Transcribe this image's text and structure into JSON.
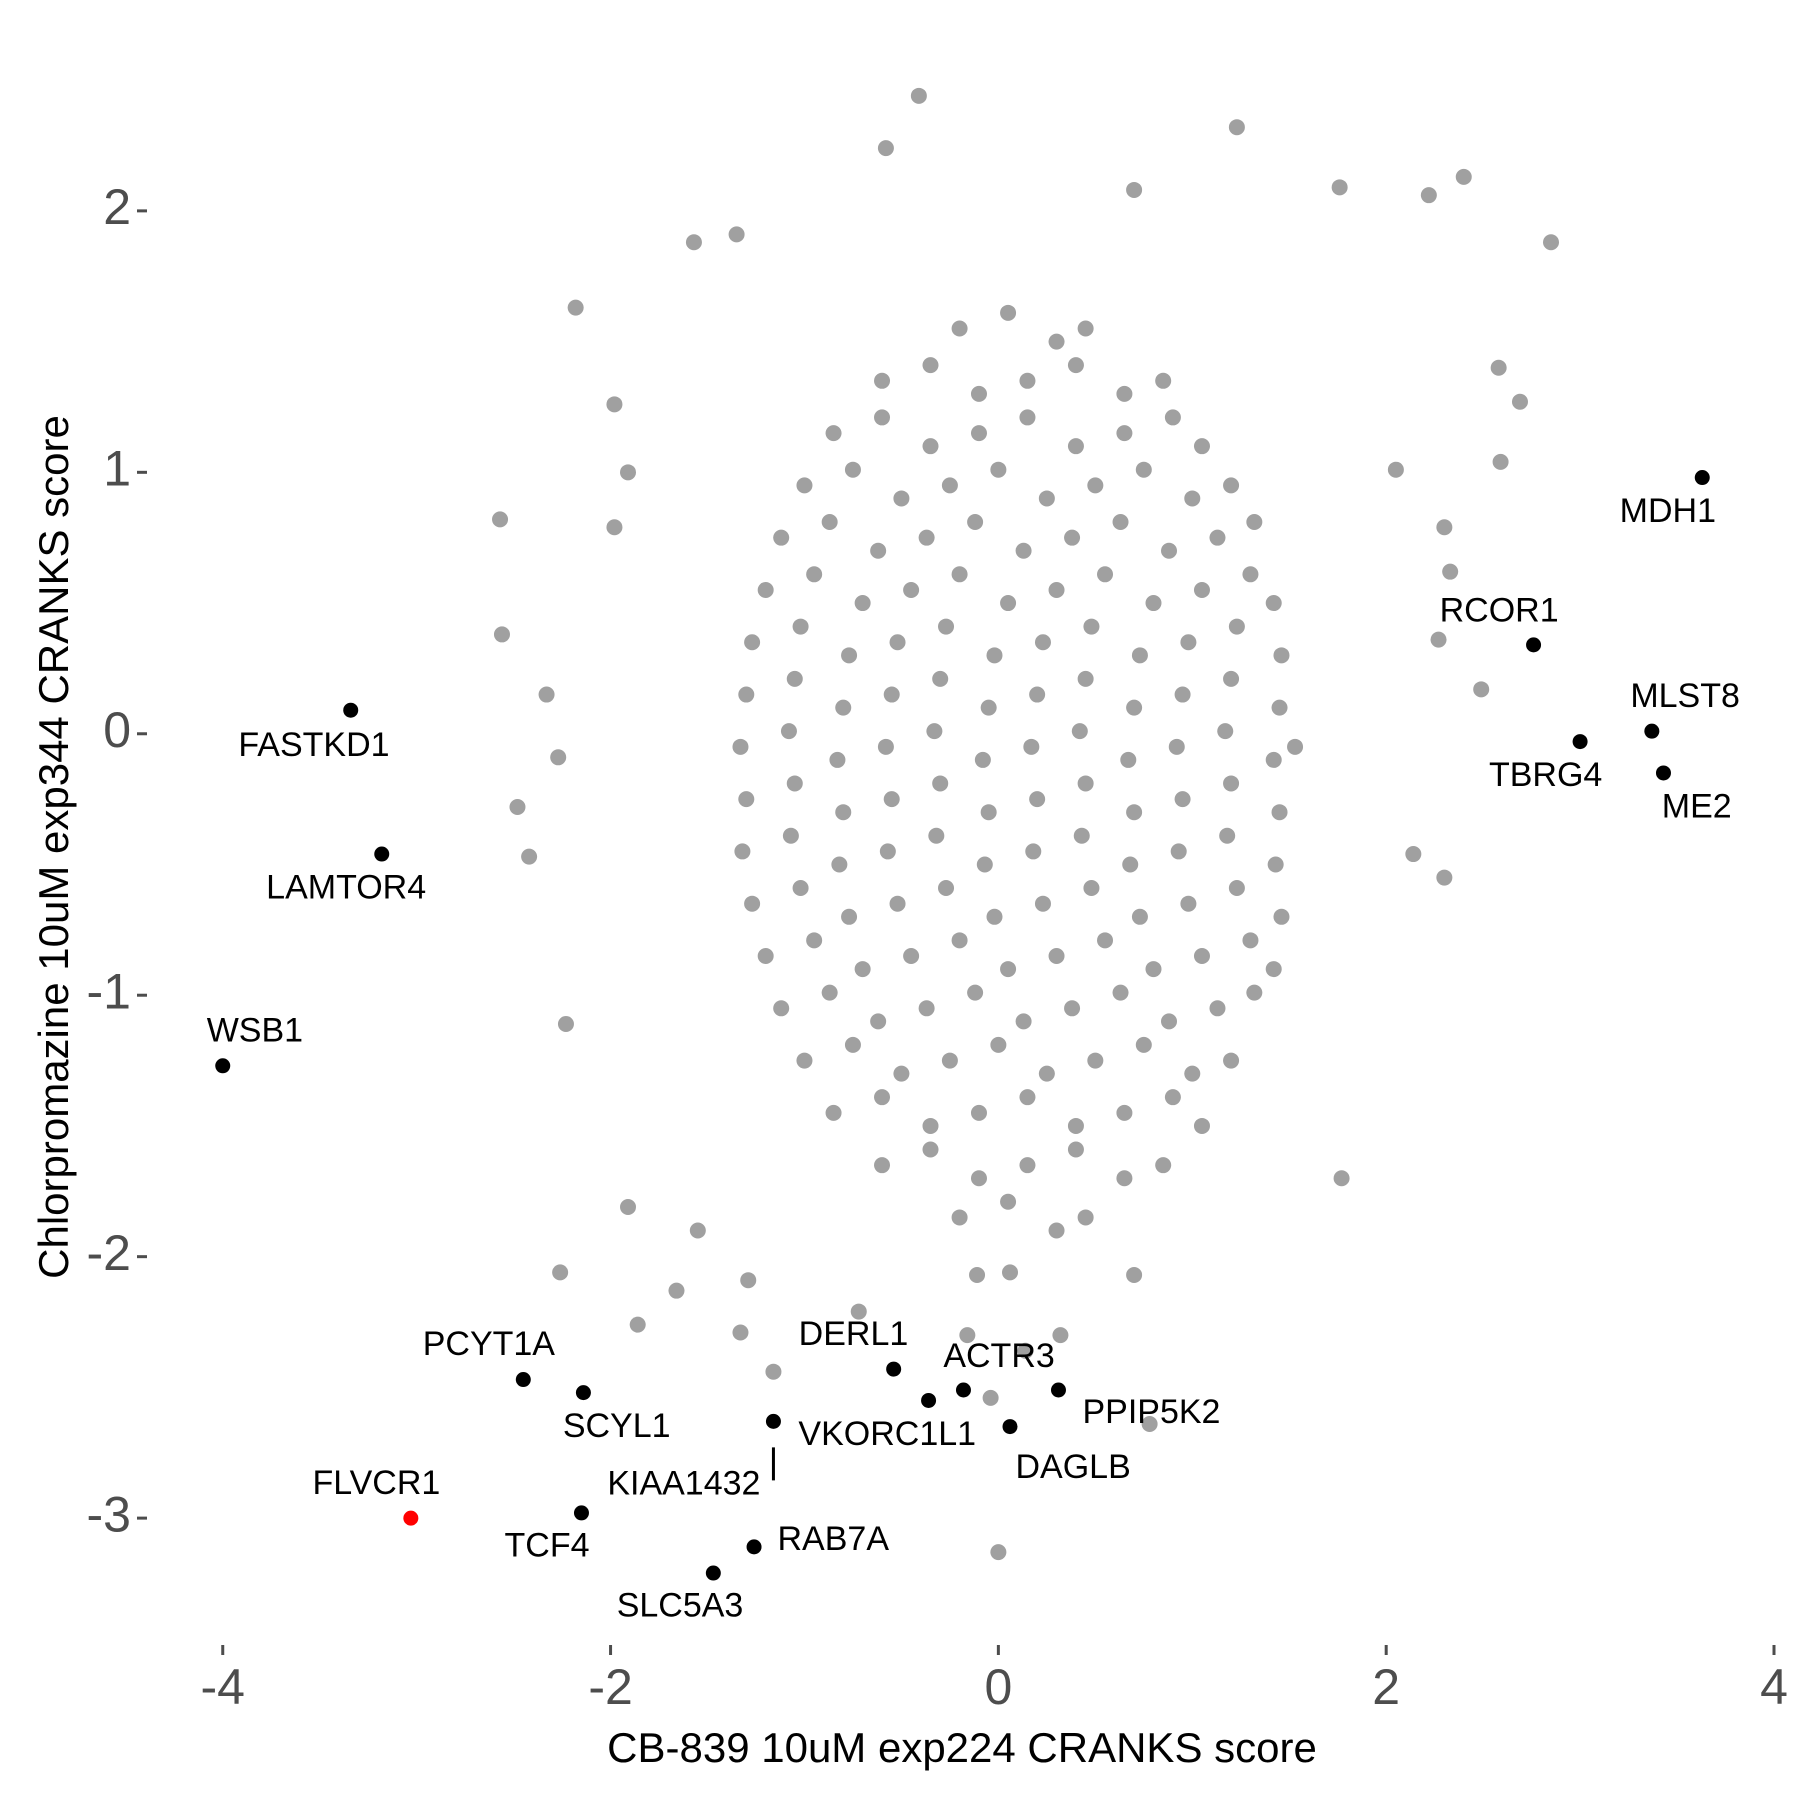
{
  "chart_data": {
    "type": "scatter",
    "x_label": "CB-839 10uM exp224 CRANKS score",
    "y_label": "Chlorpromazine 10uM exp344 CRANKS score",
    "xlim": [
      -4.37,
      4.0
    ],
    "ylim": [
      -3.47,
      2.6
    ],
    "xticks": [
      -4,
      -2,
      0,
      2,
      4
    ],
    "yticks": [
      -3,
      -2,
      -1,
      0,
      1,
      2
    ],
    "grid": false,
    "points": {
      "color": "#a0a0a0",
      "x": [
        -0.41,
        1.23,
        -0.58,
        2.4,
        2.22,
        1.76,
        0.7,
        2.85,
        -1.57,
        -1.35,
        -2.18,
        2.58,
        2.69,
        2.59,
        2.05,
        2.3,
        2.33,
        2.27,
        2.49,
        2.14,
        2.3,
        1.77,
        0.7,
        -2.57,
        -2.56,
        -1.98,
        -1.91,
        -1.98,
        -2.33,
        -2.27,
        -2.48,
        -2.42,
        -2.23,
        -2.26,
        -1.86,
        -1.66,
        -1.91,
        -1.55,
        -1.29,
        -1.33,
        -1.16,
        -0.72,
        0.0,
        0.78,
        0.32,
        0.06,
        -0.11,
        -0.04,
        -0.16,
        0.14,
        -0.2,
        0.05,
        0.3,
        0.45,
        -0.6,
        -0.35,
        -0.1,
        0.15,
        0.4,
        0.65,
        0.85,
        -0.85,
        -0.6,
        -0.35,
        -0.1,
        0.15,
        0.4,
        0.65,
        0.9,
        1.05,
        -1.0,
        -0.75,
        -0.5,
        -0.25,
        0,
        0.25,
        0.5,
        0.75,
        1.0,
        1.2,
        -1.12,
        -0.87,
        -0.62,
        -0.37,
        -0.12,
        0.13,
        0.38,
        0.63,
        0.88,
        1.13,
        1.32,
        -1.2,
        -0.95,
        -0.7,
        -0.45,
        -0.2,
        0.05,
        0.3,
        0.55,
        0.8,
        1.05,
        1.3,
        1.42,
        -1.27,
        -1.02,
        -0.77,
        -0.52,
        -0.27,
        -0.02,
        0.23,
        0.48,
        0.73,
        0.98,
        1.23,
        1.46,
        -1.3,
        -1.05,
        -0.8,
        -0.55,
        -0.3,
        -0.05,
        0.2,
        0.45,
        0.7,
        0.95,
        1.2,
        1.45,
        -1.33,
        -1.08,
        -0.83,
        -0.58,
        -0.33,
        -0.08,
        0.17,
        0.42,
        0.67,
        0.92,
        1.17,
        1.42,
        1.53,
        -1.3,
        -1.05,
        -0.8,
        -0.55,
        -0.3,
        -0.05,
        0.2,
        0.45,
        0.7,
        0.95,
        1.2,
        1.45,
        -1.32,
        -1.07,
        -0.82,
        -0.57,
        -0.32,
        -0.07,
        0.18,
        0.43,
        0.68,
        0.93,
        1.18,
        1.43,
        -1.27,
        -1.02,
        -0.77,
        -0.52,
        -0.27,
        -0.02,
        0.23,
        0.48,
        0.73,
        0.98,
        1.23,
        1.46,
        -1.2,
        -0.95,
        -0.7,
        -0.45,
        -0.2,
        0.05,
        0.3,
        0.55,
        0.8,
        1.05,
        1.3,
        1.42,
        -1.12,
        -0.87,
        -0.62,
        -0.37,
        -0.12,
        0.13,
        0.38,
        0.63,
        0.88,
        1.13,
        1.32,
        -1.0,
        -0.75,
        -0.5,
        -0.25,
        0,
        0.25,
        0.5,
        0.75,
        1.0,
        1.2,
        -0.85,
        -0.6,
        -0.35,
        -0.1,
        0.15,
        0.4,
        0.65,
        0.9,
        1.05,
        -0.6,
        -0.35,
        -0.1,
        0.15,
        0.4,
        0.65,
        0.85,
        -0.2,
        0.05,
        0.3,
        0.45
      ],
      "y": [
        2.44,
        2.32,
        2.24,
        2.13,
        2.06,
        2.09,
        2.08,
        1.88,
        1.88,
        1.91,
        1.63,
        1.4,
        1.27,
        1.04,
        1.01,
        0.79,
        0.62,
        0.36,
        0.17,
        -0.46,
        -0.55,
        -1.7,
        -2.07,
        0.82,
        0.38,
        1.26,
        1.0,
        0.79,
        0.15,
        -0.09,
        -0.28,
        -0.47,
        -1.11,
        -2.06,
        -2.26,
        -2.13,
        -1.81,
        -1.9,
        -2.09,
        -2.29,
        -2.44,
        -2.21,
        -3.13,
        -2.64,
        -2.3,
        -2.06,
        -2.07,
        -2.54,
        -2.3,
        -2.36,
        1.55,
        1.61,
        1.5,
        1.55,
        1.35,
        1.41,
        1.3,
        1.35,
        1.41,
        1.3,
        1.35,
        1.15,
        1.21,
        1.1,
        1.15,
        1.21,
        1.1,
        1.15,
        1.21,
        1.1,
        0.95,
        1.01,
        0.9,
        0.95,
        1.01,
        0.9,
        0.95,
        1.01,
        0.9,
        0.95,
        0.75,
        0.81,
        0.7,
        0.75,
        0.81,
        0.7,
        0.75,
        0.81,
        0.7,
        0.75,
        0.81,
        0.55,
        0.61,
        0.5,
        0.55,
        0.61,
        0.5,
        0.55,
        0.61,
        0.5,
        0.55,
        0.61,
        0.5,
        0.35,
        0.41,
        0.3,
        0.35,
        0.41,
        0.3,
        0.35,
        0.41,
        0.3,
        0.35,
        0.41,
        0.3,
        0.15,
        0.21,
        0.1,
        0.15,
        0.21,
        0.1,
        0.15,
        0.21,
        0.1,
        0.15,
        0.21,
        0.1,
        -0.05,
        0.01,
        -0.1,
        -0.05,
        0.01,
        -0.1,
        -0.05,
        0.01,
        -0.1,
        -0.05,
        0.01,
        -0.1,
        -0.05,
        -0.25,
        -0.19,
        -0.3,
        -0.25,
        -0.19,
        -0.3,
        -0.25,
        -0.19,
        -0.3,
        -0.25,
        -0.19,
        -0.3,
        -0.45,
        -0.39,
        -0.5,
        -0.45,
        -0.39,
        -0.5,
        -0.45,
        -0.39,
        -0.5,
        -0.45,
        -0.39,
        -0.5,
        -0.65,
        -0.59,
        -0.7,
        -0.65,
        -0.59,
        -0.7,
        -0.65,
        -0.59,
        -0.7,
        -0.65,
        -0.59,
        -0.7,
        -0.85,
        -0.79,
        -0.9,
        -0.85,
        -0.79,
        -0.9,
        -0.85,
        -0.79,
        -0.9,
        -0.85,
        -0.79,
        -0.9,
        -1.05,
        -0.99,
        -1.1,
        -1.05,
        -0.99,
        -1.1,
        -1.05,
        -0.99,
        -1.1,
        -1.05,
        -0.99,
        -1.25,
        -1.19,
        -1.3,
        -1.25,
        -1.19,
        -1.3,
        -1.25,
        -1.19,
        -1.3,
        -1.25,
        -1.45,
        -1.39,
        -1.5,
        -1.45,
        -1.39,
        -1.5,
        -1.45,
        -1.39,
        -1.5,
        -1.65,
        -1.59,
        -1.7,
        -1.65,
        -1.59,
        -1.7,
        -1.65,
        -1.85,
        -1.79,
        -1.9,
        -1.85
      ]
    },
    "labeled": {
      "labels": [
        "MDH1",
        "RCOR1",
        "MLST8",
        "TBRG4",
        "ME2",
        "FASTKD1",
        "LAMTOR4",
        "WSB1",
        "PCYT1A",
        "SCYL1",
        "FLVCR1",
        "TCF4",
        "KIAA1432",
        "RAB7A",
        "SLC5A3",
        "DERL1",
        "ACTR3",
        "VKORC1L1",
        "DAGLB",
        "PPIP5K2"
      ],
      "x": [
        3.63,
        2.76,
        3.37,
        3.0,
        3.43,
        -3.34,
        -3.18,
        -4.0,
        -2.45,
        -2.14,
        -3.03,
        -2.15,
        -1.16,
        -1.26,
        -1.47,
        -0.54,
        -0.18,
        -0.36,
        0.06,
        0.31
      ],
      "y": [
        0.98,
        0.34,
        0.01,
        -0.03,
        -0.15,
        0.09,
        -0.46,
        -1.27,
        -2.47,
        -2.52,
        -3.0,
        -2.98,
        -2.63,
        -3.11,
        -3.21,
        -2.43,
        -2.51,
        -2.55,
        -2.65,
        -2.51
      ],
      "colors": [
        "#000000",
        "#000000",
        "#000000",
        "#000000",
        "#000000",
        "#000000",
        "#000000",
        "#000000",
        "#000000",
        "#000000",
        "#ff0000",
        "#000000",
        "#000000",
        "#000000",
        "#000000",
        "#000000",
        "#000000",
        "#000000",
        "#000000",
        "#000000"
      ]
    }
  }
}
